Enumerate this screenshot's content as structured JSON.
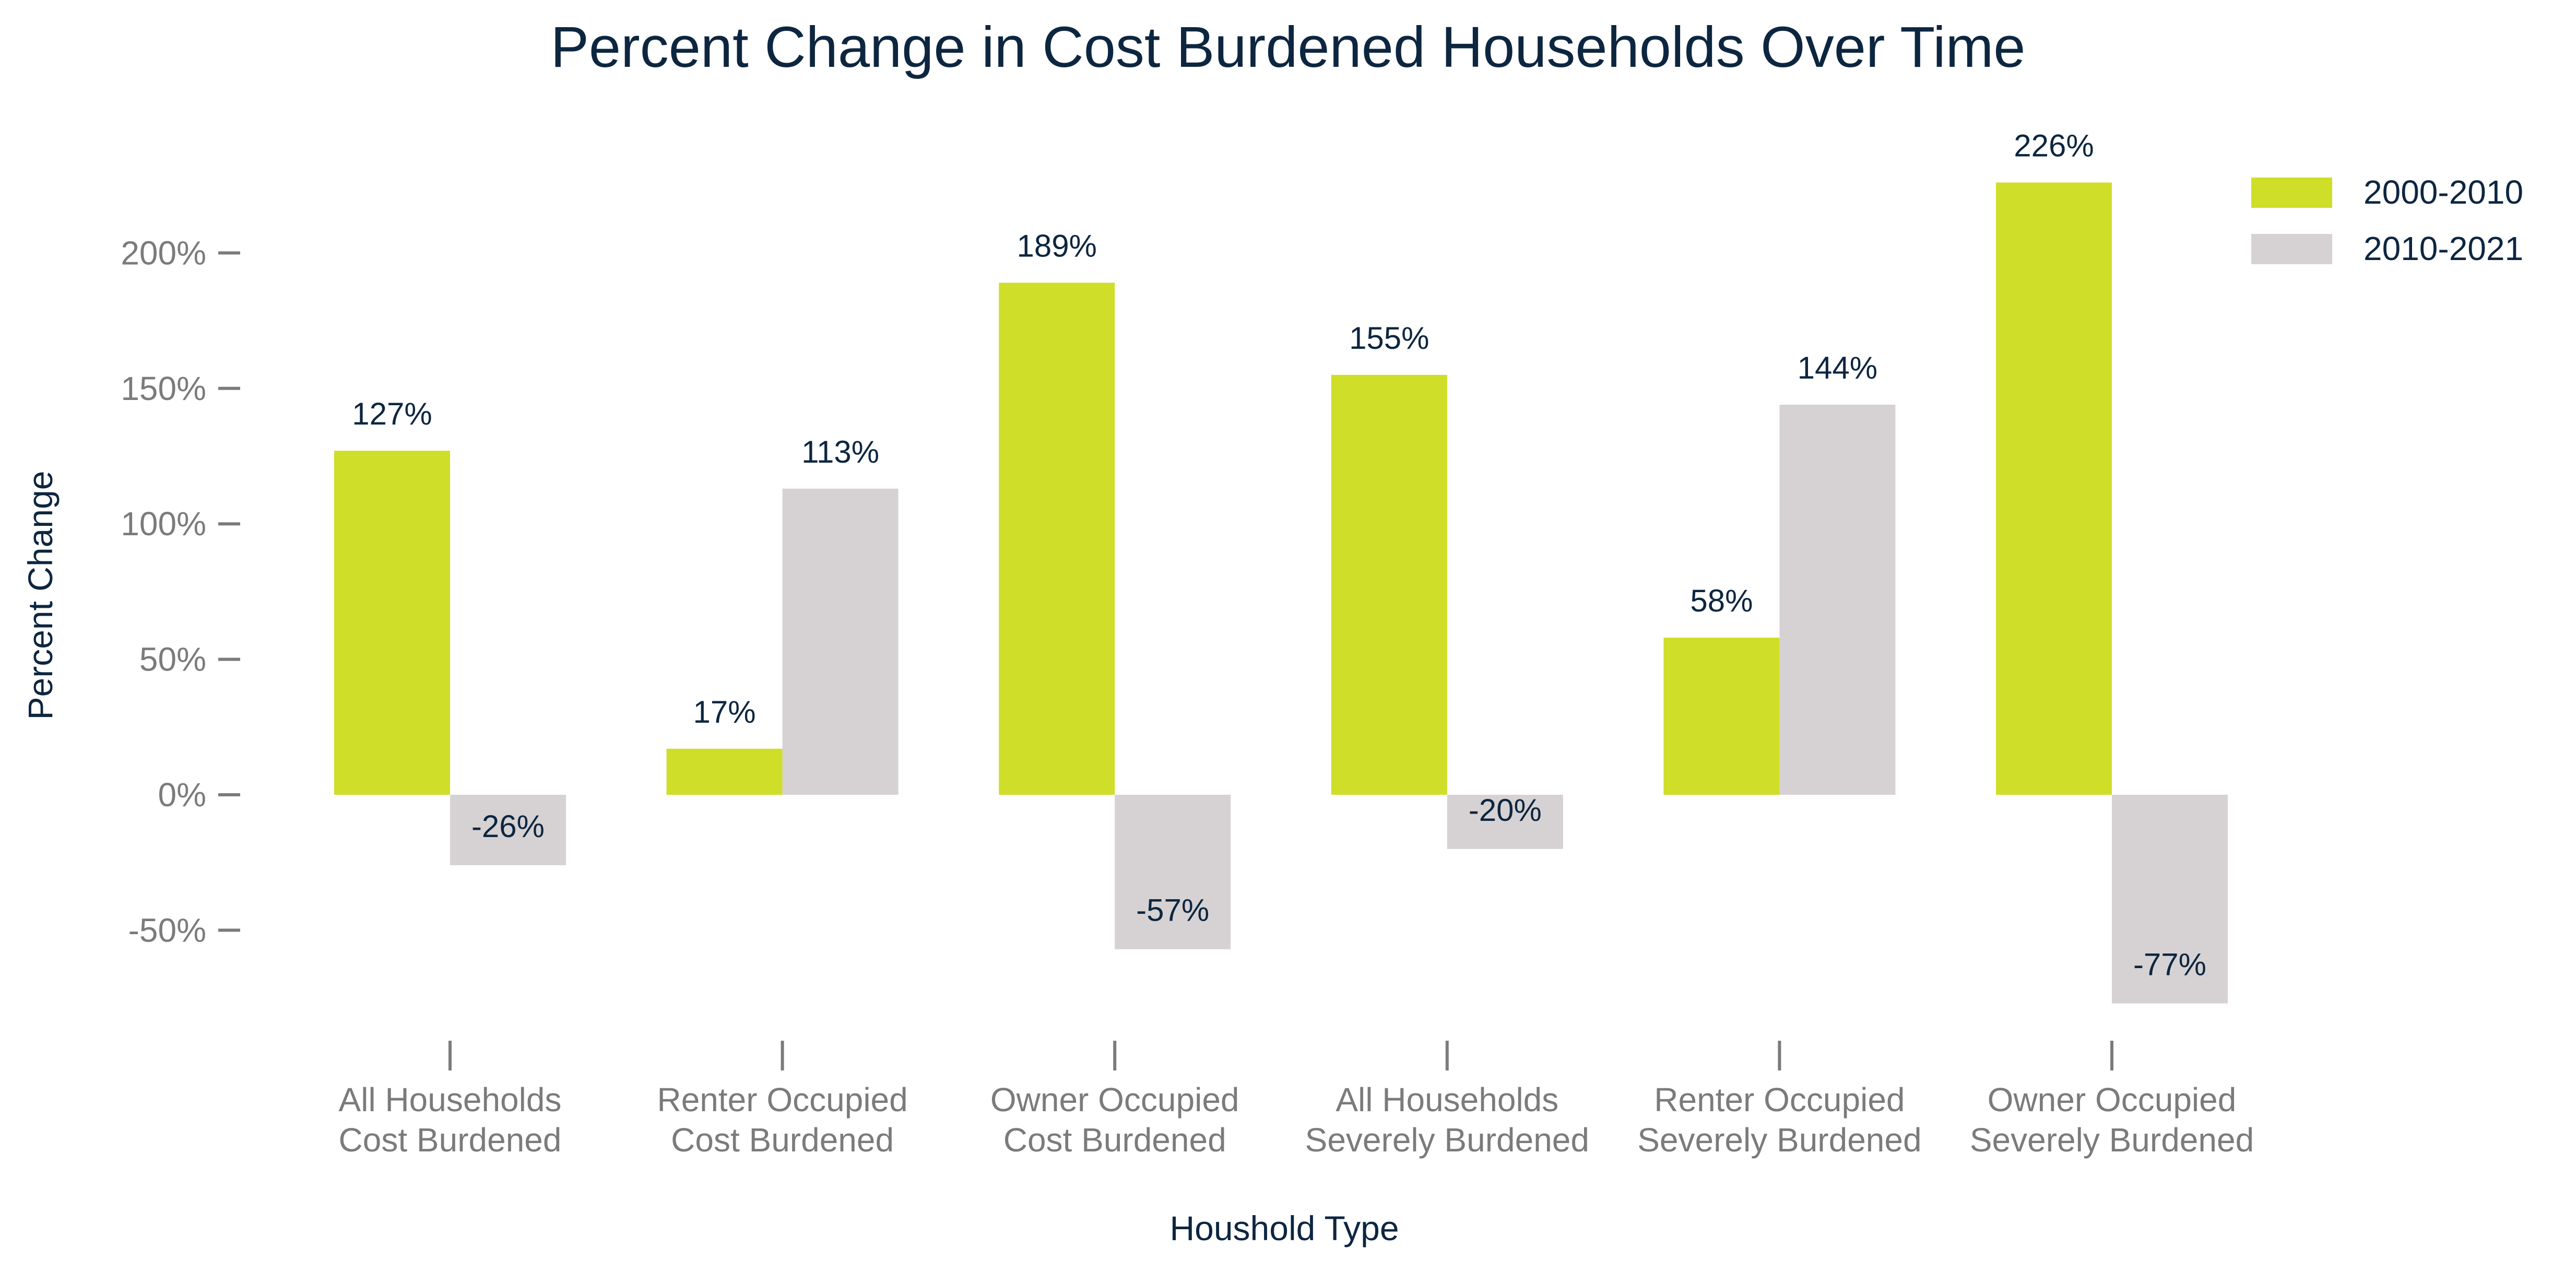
{
  "chart_data": {
    "type": "bar",
    "title": "Percent Change in Cost Burdened Households Over Time",
    "xlabel": "Houshold Type",
    "ylabel": "Percent Change",
    "categories": [
      [
        "All Households",
        "Cost Burdened"
      ],
      [
        "Renter Occupied",
        "Cost Burdened"
      ],
      [
        "Owner Occupied",
        "Cost Burdened"
      ],
      [
        "All Households",
        "Severely Burdened"
      ],
      [
        "Renter Occupied",
        "Severely Burdened"
      ],
      [
        "Owner Occupied",
        "Severely Burdened"
      ]
    ],
    "series": [
      {
        "name": "2000-2010",
        "color": "#cfde28",
        "values": [
          127,
          17,
          189,
          155,
          58,
          226
        ],
        "labels": [
          "127%",
          "17%",
          "189%",
          "155%",
          "58%",
          "226%"
        ]
      },
      {
        "name": "2010-2021",
        "color": "#d6d2d3",
        "values": [
          -26,
          113,
          -57,
          -20,
          144,
          -77
        ],
        "labels": [
          "-26%",
          "113%",
          "-57%",
          "-20%",
          "144%",
          "-77%"
        ]
      }
    ],
    "yticks": [
      -50,
      0,
      50,
      100,
      150,
      200
    ],
    "ytick_labels": [
      "-50%",
      "0%",
      "50%",
      "100%",
      "150%",
      "200%"
    ],
    "ylim": [
      -85,
      235
    ],
    "grid": false,
    "legend": "top-right"
  }
}
